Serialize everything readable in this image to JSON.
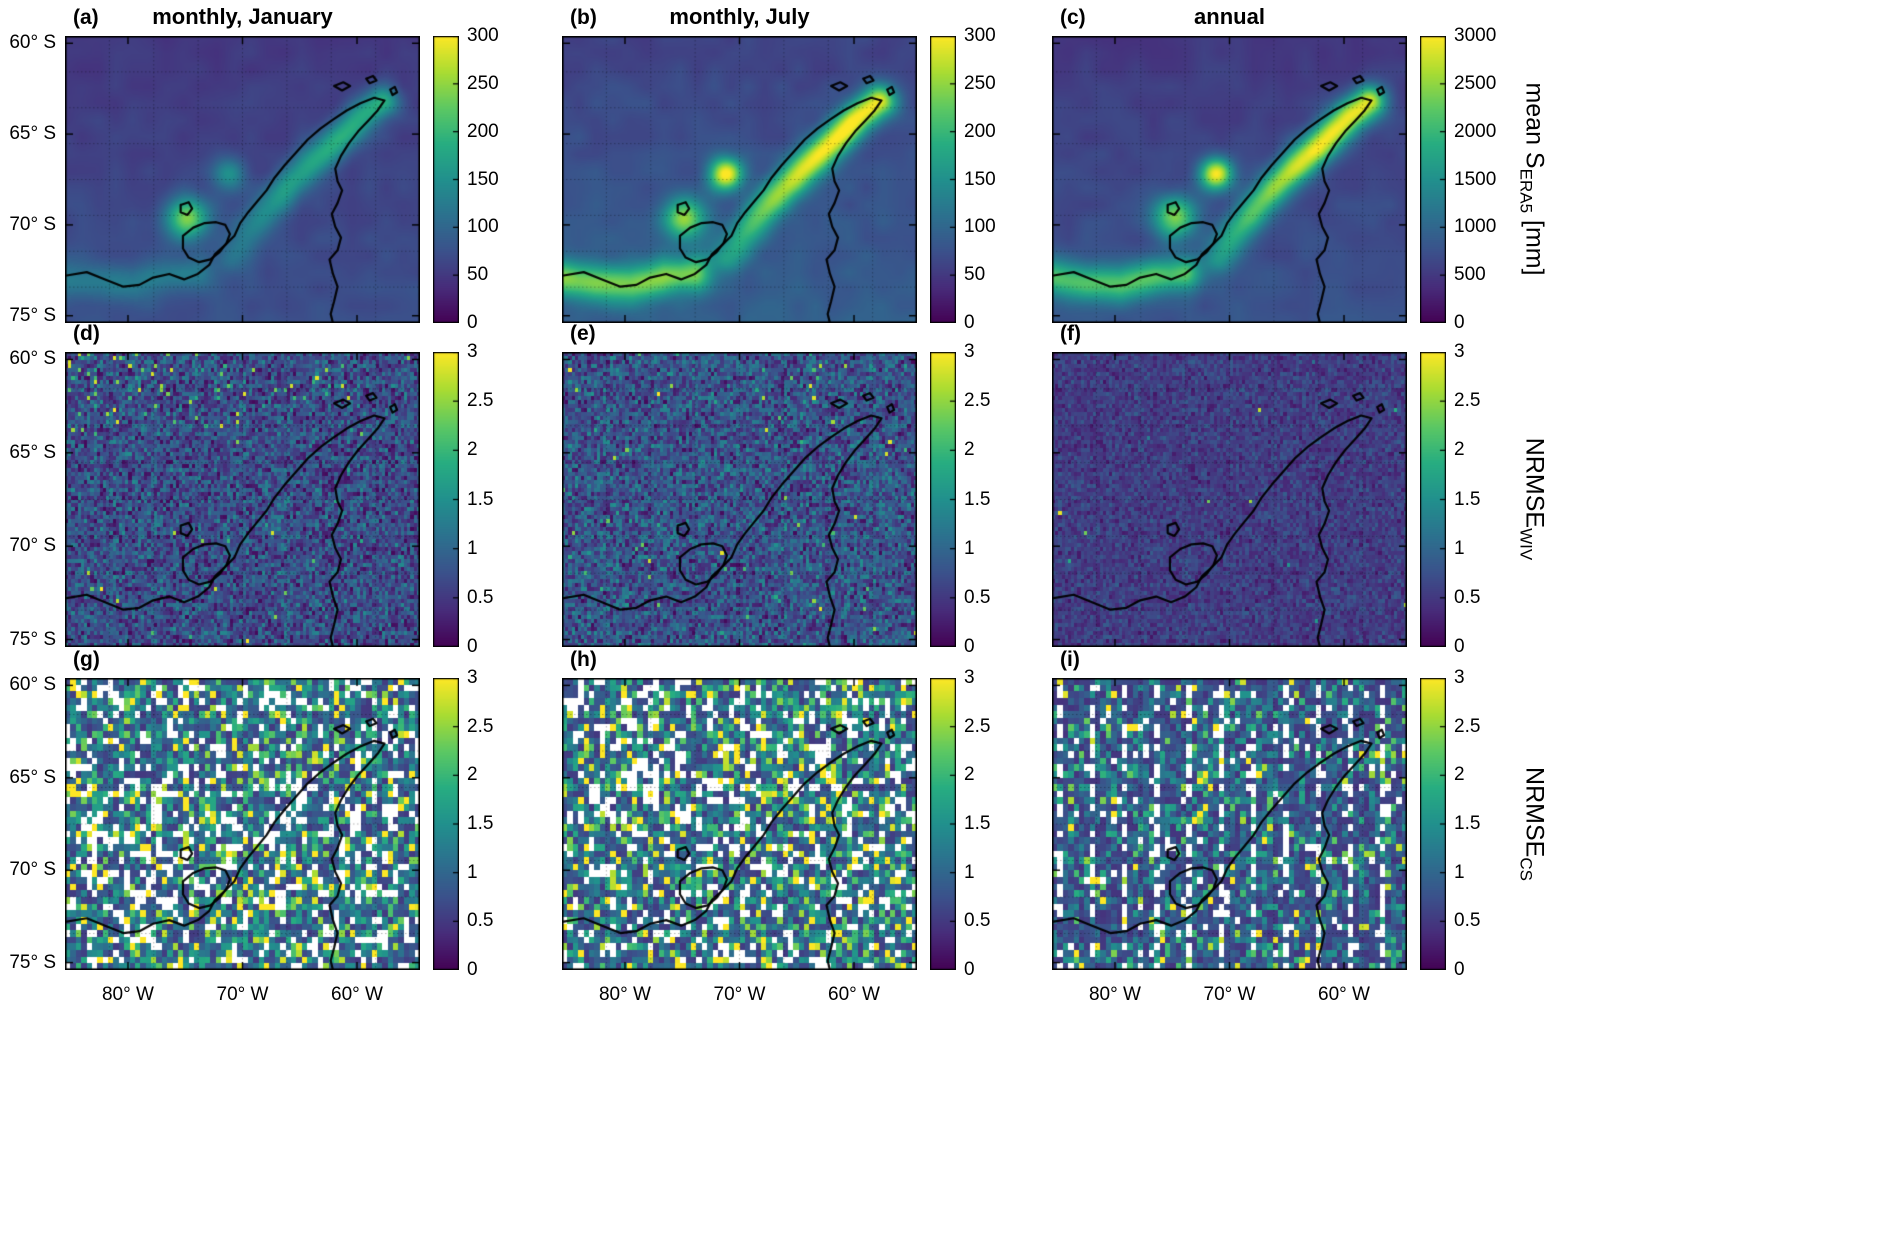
{
  "figure": {
    "background": "#ffffff",
    "rows": [
      {
        "ylabel": {
          "pre": "mean S",
          "sub": "ERA5",
          "post": " [mm]"
        }
      },
      {
        "ylabel": {
          "pre": "NRMSE",
          "sub": "WIV",
          "post": ""
        }
      },
      {
        "ylabel": {
          "pre": "NRMSE",
          "sub": "CS",
          "post": ""
        }
      }
    ]
  },
  "axes": {
    "x_ticks": [
      "80° W",
      "70° W",
      "60° W"
    ],
    "y_ticks": [
      "60° S",
      "65° S",
      "70° S",
      "75° S"
    ],
    "x_tick_lons": [
      -80,
      -70,
      -60
    ],
    "y_tick_lats": [
      -60,
      -65,
      -70,
      -75
    ],
    "x_range_deg_lon": [
      -85.5,
      -54.5
    ],
    "y_range_deg_lat": [
      -59.6,
      -75.4
    ]
  },
  "colormap": "viridis",
  "chart_data": [
    {
      "id": "a",
      "label": "(a)",
      "row": 0,
      "col": 0,
      "type": "heatmap",
      "title": "monthly, January",
      "variable": "mean S_ERA5 [mm]",
      "colorbar": {
        "min": 0,
        "max": 300,
        "ticks": [
          "300",
          "250",
          "200",
          "150",
          "100",
          "50",
          "0"
        ]
      },
      "sim": {
        "seed": 11,
        "kind": "precip",
        "base": 50,
        "grad": 26,
        "spine": 130,
        "blobA": 180,
        "blobB": 85,
        "coast": 55,
        "noise": 9,
        "vmax": 300
      }
    },
    {
      "id": "b",
      "label": "(b)",
      "row": 0,
      "col": 1,
      "type": "heatmap",
      "title": "monthly, July",
      "variable": "mean S_ERA5 [mm]",
      "colorbar": {
        "min": 0,
        "max": 300,
        "ticks": [
          "300",
          "250",
          "200",
          "150",
          "100",
          "50",
          "0"
        ]
      },
      "sim": {
        "seed": 12,
        "kind": "precip",
        "base": 62,
        "grad": 30,
        "spine": 235,
        "blobA": 175,
        "blobB": 235,
        "coast": 155,
        "noise": 11,
        "vmax": 300
      }
    },
    {
      "id": "c",
      "label": "(c)",
      "row": 0,
      "col": 2,
      "type": "heatmap",
      "title": "annual",
      "variable": "mean S_ERA5 [mm]",
      "colorbar": {
        "min": 0,
        "max": 3000,
        "ticks": [
          "3000",
          "2500",
          "2000",
          "1500",
          "1000",
          "500",
          "0"
        ]
      },
      "sim": {
        "seed": 13,
        "kind": "precip",
        "base": 510,
        "grad": 280,
        "spine": 2400,
        "blobA": 1750,
        "blobB": 2350,
        "coast": 1450,
        "noise": 95,
        "vmax": 3000
      }
    },
    {
      "id": "d",
      "label": "(d)",
      "row": 1,
      "col": 0,
      "type": "heatmap",
      "title": "",
      "variable": "NRMSE_WIV",
      "colorbar": {
        "min": 0,
        "max": 3,
        "ticks": [
          "3",
          "2.5",
          "2",
          "1.5",
          "1",
          "0.5",
          "0"
        ]
      },
      "sim": {
        "seed": 21,
        "kind": "wiv",
        "base": 0.72,
        "noise": 0.5,
        "spike_p": 0.006,
        "spike_tl": 0.12,
        "nx": 112,
        "ny": 74,
        "vmax": 3
      }
    },
    {
      "id": "e",
      "label": "(e)",
      "row": 1,
      "col": 1,
      "type": "heatmap",
      "title": "",
      "variable": "NRMSE_WIV",
      "colorbar": {
        "min": 0,
        "max": 3,
        "ticks": [
          "3",
          "2.5",
          "2",
          "1.5",
          "1",
          "0.5",
          "0"
        ]
      },
      "sim": {
        "seed": 22,
        "kind": "wiv",
        "base": 0.78,
        "noise": 0.5,
        "spike_p": 0.012,
        "spike_tl": 0,
        "nx": 112,
        "ny": 74,
        "vmax": 3
      }
    },
    {
      "id": "f",
      "label": "(f)",
      "row": 1,
      "col": 2,
      "type": "heatmap",
      "title": "",
      "variable": "NRMSE_WIV",
      "colorbar": {
        "min": 0,
        "max": 3,
        "ticks": [
          "3",
          "2.5",
          "2",
          "1.5",
          "1",
          "0.5",
          "0"
        ]
      },
      "sim": {
        "seed": 23,
        "kind": "wiv",
        "base": 0.55,
        "noise": 0.25,
        "spike_p": 0.0015,
        "spike_tl": 0,
        "nx": 112,
        "ny": 74,
        "vmax": 3
      }
    },
    {
      "id": "g",
      "label": "(g)",
      "row": 2,
      "col": 0,
      "type": "heatmap",
      "title": "",
      "variable": "NRMSE_CS",
      "colorbar": {
        "min": 0,
        "max": 3,
        "ticks": [
          "3",
          "2.5",
          "2",
          "1.5",
          "1",
          "0.5",
          "0"
        ]
      },
      "sim": {
        "seed": 31,
        "kind": "cs",
        "base": 0.5,
        "scale": 0.9,
        "white_p": 0.15,
        "periodic": false,
        "nx": 66,
        "ny": 44,
        "vmax": 3
      }
    },
    {
      "id": "h",
      "label": "(h)",
      "row": 2,
      "col": 1,
      "type": "heatmap",
      "title": "",
      "variable": "NRMSE_CS",
      "colorbar": {
        "min": 0,
        "max": 3,
        "ticks": [
          "3",
          "2.5",
          "2",
          "1.5",
          "1",
          "0.5",
          "0"
        ]
      },
      "sim": {
        "seed": 32,
        "kind": "cs",
        "base": 0.5,
        "scale": 0.9,
        "white_p": 0.14,
        "periodic": false,
        "nx": 66,
        "ny": 44,
        "vmax": 3
      }
    },
    {
      "id": "i",
      "label": "(i)",
      "row": 2,
      "col": 2,
      "type": "heatmap",
      "title": "",
      "variable": "NRMSE_CS",
      "colorbar": {
        "min": 0,
        "max": 3,
        "ticks": [
          "3",
          "2.5",
          "2",
          "1.5",
          "1",
          "0.5",
          "0"
        ]
      },
      "sim": {
        "seed": 33,
        "kind": "cs",
        "base": 0.45,
        "scale": 0.6,
        "white_p": 0.1,
        "periodic": true,
        "nx": 66,
        "ny": 44,
        "vmax": 3
      }
    }
  ],
  "coastline": {
    "main": [
      [
        -85.5,
        -72.8
      ],
      [
        -83.6,
        -72.6
      ],
      [
        -82.0,
        -73.0
      ],
      [
        -80.4,
        -73.4
      ],
      [
        -79.0,
        -73.3
      ],
      [
        -77.8,
        -72.9
      ],
      [
        -76.4,
        -72.7
      ],
      [
        -75.1,
        -73.0
      ],
      [
        -73.9,
        -72.7
      ],
      [
        -72.9,
        -72.2
      ],
      [
        -72.4,
        -71.6
      ],
      [
        -71.5,
        -71.1
      ],
      [
        -70.7,
        -70.6
      ],
      [
        -70.2,
        -69.9
      ],
      [
        -69.5,
        -69.3
      ],
      [
        -68.7,
        -68.7
      ],
      [
        -67.9,
        -68.1
      ],
      [
        -67.2,
        -67.4
      ],
      [
        -66.3,
        -66.7
      ],
      [
        -65.3,
        -66.0
      ],
      [
        -64.3,
        -65.3
      ],
      [
        -63.2,
        -64.7
      ],
      [
        -62.1,
        -64.2
      ],
      [
        -60.9,
        -63.7
      ],
      [
        -59.7,
        -63.3
      ],
      [
        -58.5,
        -63.0
      ],
      [
        -57.6,
        -63.15
      ],
      [
        -58.2,
        -63.7
      ],
      [
        -59.0,
        -64.25
      ],
      [
        -59.9,
        -64.85
      ],
      [
        -60.7,
        -65.5
      ],
      [
        -61.4,
        -66.2
      ],
      [
        -61.9,
        -66.9
      ],
      [
        -61.7,
        -67.6
      ],
      [
        -61.3,
        -68.1
      ],
      [
        -61.7,
        -68.8
      ],
      [
        -62.2,
        -69.4
      ],
      [
        -61.9,
        -70.1
      ],
      [
        -61.4,
        -70.7
      ],
      [
        -61.7,
        -71.4
      ],
      [
        -62.4,
        -71.9
      ],
      [
        -62.1,
        -72.7
      ],
      [
        -61.7,
        -73.4
      ],
      [
        -62.0,
        -74.2
      ],
      [
        -62.3,
        -74.9
      ],
      [
        -62.1,
        -75.4
      ]
    ],
    "alexander_island": [
      [
        -75.2,
        -70.6
      ],
      [
        -74.3,
        -70.15
      ],
      [
        -73.3,
        -69.9
      ],
      [
        -72.3,
        -69.85
      ],
      [
        -71.5,
        -70.0
      ],
      [
        -71.1,
        -70.5
      ],
      [
        -71.4,
        -71.0
      ],
      [
        -72.0,
        -71.5
      ],
      [
        -72.8,
        -71.9
      ],
      [
        -73.8,
        -72.05
      ],
      [
        -74.7,
        -71.8
      ],
      [
        -75.2,
        -71.3
      ],
      [
        -75.2,
        -70.6
      ]
    ],
    "small_island_west": [
      [
        -75.4,
        -68.9
      ],
      [
        -74.7,
        -68.75
      ],
      [
        -74.4,
        -69.1
      ],
      [
        -74.8,
        -69.45
      ],
      [
        -75.4,
        -69.3
      ],
      [
        -75.4,
        -68.9
      ]
    ],
    "shetland_1": [
      [
        -62.0,
        -62.35
      ],
      [
        -61.2,
        -62.15
      ],
      [
        -60.6,
        -62.35
      ],
      [
        -61.3,
        -62.6
      ],
      [
        -62.0,
        -62.35
      ]
    ],
    "shetland_2": [
      [
        -59.2,
        -61.95
      ],
      [
        -58.6,
        -61.8
      ],
      [
        -58.3,
        -62.05
      ],
      [
        -58.9,
        -62.2
      ],
      [
        -59.2,
        -61.95
      ]
    ],
    "tip_islet": [
      [
        -57.1,
        -62.55
      ],
      [
        -56.7,
        -62.4
      ],
      [
        -56.5,
        -62.7
      ],
      [
        -56.9,
        -62.85
      ],
      [
        -57.1,
        -62.55
      ]
    ]
  },
  "ridges": {
    "spine": [
      [
        -57.8,
        -63.2
      ],
      [
        -59.5,
        -64.0
      ],
      [
        -61.0,
        -64.9
      ],
      [
        -62.6,
        -65.9
      ],
      [
        -64.3,
        -66.9
      ],
      [
        -65.9,
        -67.9
      ],
      [
        -67.4,
        -68.9
      ],
      [
        -68.7,
        -69.9
      ],
      [
        -69.9,
        -70.9
      ],
      [
        -70.9,
        -71.9
      ]
    ],
    "south_coast": [
      [
        -85.5,
        -72.9
      ],
      [
        -82.5,
        -73.2
      ],
      [
        -79.5,
        -73.3
      ],
      [
        -76.5,
        -72.85
      ],
      [
        -74.0,
        -72.7
      ]
    ]
  }
}
